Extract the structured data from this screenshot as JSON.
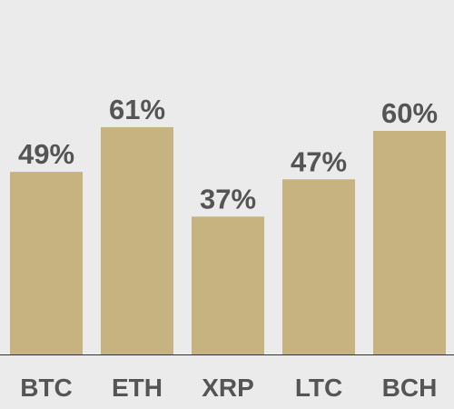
{
  "colors": {
    "background": "#ebebeb",
    "bar": "#c7b37f",
    "text": "#555555",
    "axis": "#333333"
  },
  "chart_data": {
    "type": "bar",
    "categories": [
      "BTC",
      "ETH",
      "XRP",
      "LTC",
      "BCH"
    ],
    "values": [
      49,
      61,
      37,
      47,
      60
    ],
    "value_labels": [
      "49%",
      "61%",
      "37%",
      "47%",
      "60%"
    ],
    "unit": "%",
    "ylim": [
      0,
      100
    ],
    "grid": false,
    "legend": "none",
    "title": "",
    "xlabel": "",
    "ylabel": ""
  }
}
